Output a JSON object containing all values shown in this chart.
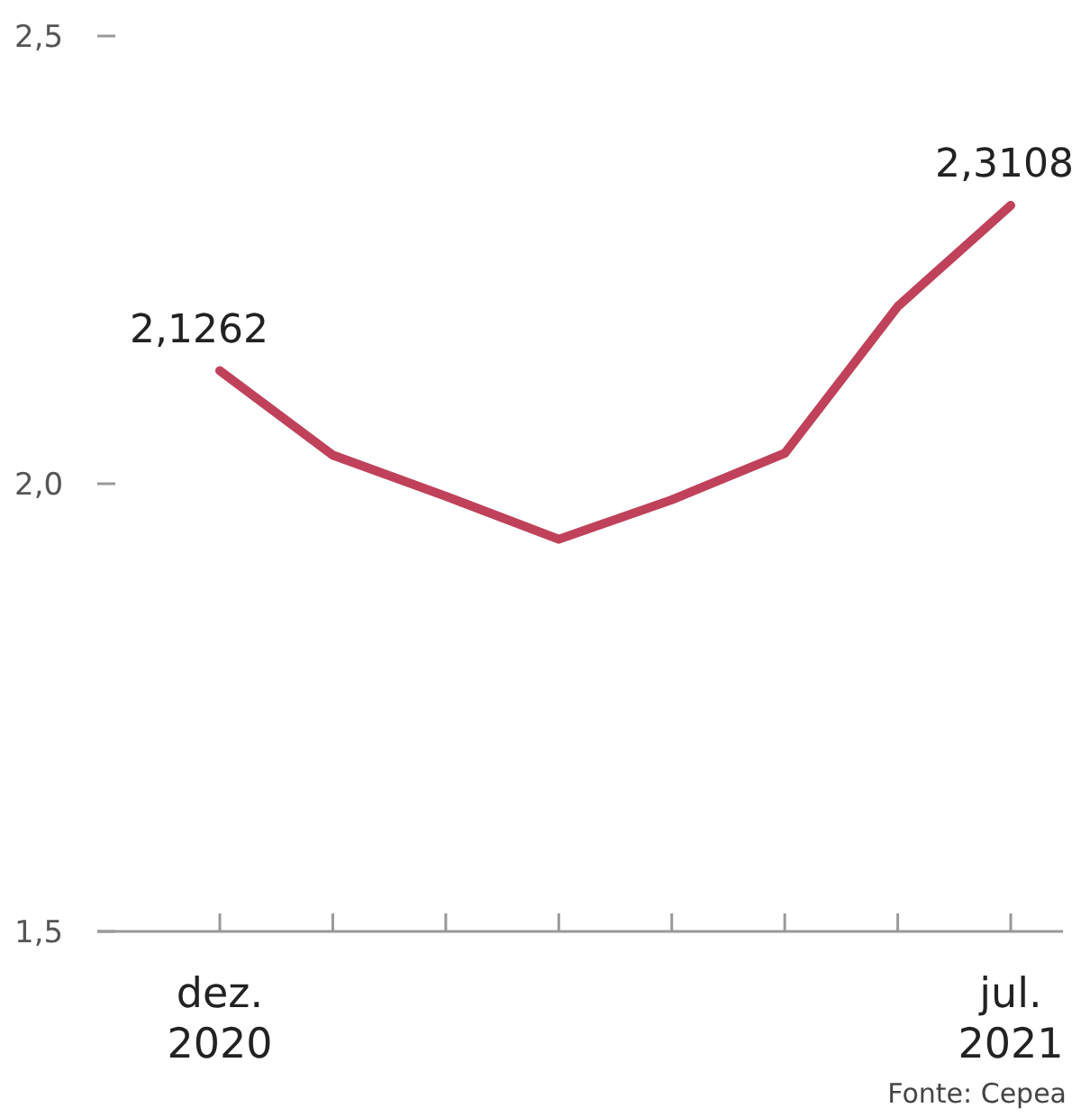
{
  "chart_data": {
    "type": "line",
    "categories": [
      "dez.\n2020",
      null,
      null,
      null,
      null,
      null,
      null,
      "jul.\n2021"
    ],
    "series": [
      {
        "color": "#c0425a",
        "values": [
          2.1262,
          2.032,
          1.986,
          1.938,
          1.982,
          2.034,
          2.198,
          2.3108
        ],
        "value_labels": [
          "2,1262",
          null,
          null,
          null,
          null,
          null,
          null,
          "2,3108"
        ]
      }
    ],
    "ylim": [
      1.5,
      2.5
    ],
    "yticks": [
      {
        "value": 1.5,
        "label": "1,5"
      },
      {
        "value": 2.0,
        "label": "2,0"
      },
      {
        "value": 2.5,
        "label": "2,5"
      }
    ],
    "grid": false,
    "marker": "none",
    "line_style": "solid",
    "annotations": [
      "Fonte: Cepea"
    ]
  }
}
